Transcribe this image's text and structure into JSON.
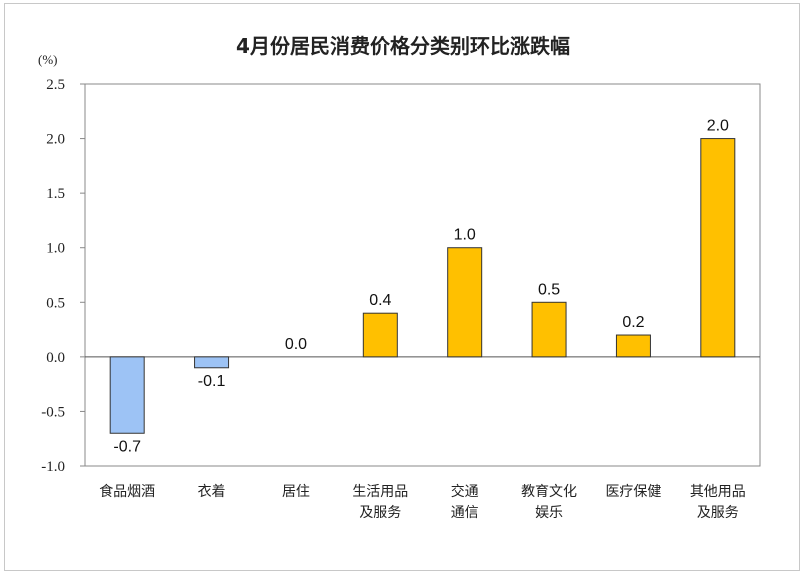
{
  "chart_data": {
    "type": "bar",
    "title": "4月份居民消费价格分类别环比涨跌幅",
    "unit_label": "(%)",
    "ylim": [
      -1.0,
      2.5
    ],
    "yticks": [
      "2.5",
      "2.0",
      "1.5",
      "1.0",
      "0.5",
      "0.0",
      "-0.5",
      "-1.0"
    ],
    "ytick_values": [
      2.5,
      2.0,
      1.5,
      1.0,
      0.5,
      0.0,
      -0.5,
      -1.0
    ],
    "categories": [
      [
        "食品烟酒"
      ],
      [
        "衣着"
      ],
      [
        "居住"
      ],
      [
        "生活用品",
        "及服务"
      ],
      [
        "交通",
        "通信"
      ],
      [
        "教育文化",
        "娱乐"
      ],
      [
        "医疗保健"
      ],
      [
        "其他用品",
        "及服务"
      ]
    ],
    "values": [
      -0.7,
      -0.1,
      0.0,
      0.4,
      1.0,
      0.5,
      0.2,
      2.0
    ],
    "value_labels": [
      "-0.7",
      "-0.1",
      "0.0",
      "0.4",
      "1.0",
      "0.5",
      "0.2",
      "2.0"
    ],
    "colors": {
      "positive": "#FFC000",
      "negative": "#9DC3F5",
      "outline": "#333333"
    },
    "grid": false,
    "legend": "none"
  }
}
